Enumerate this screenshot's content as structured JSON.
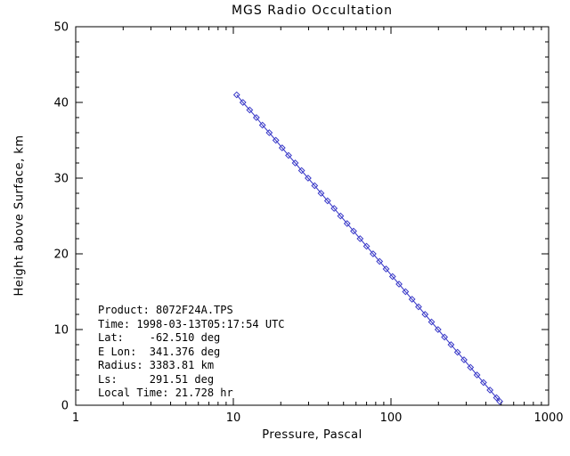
{
  "title": "MGS Radio Occultation",
  "colors": {
    "line": "#3939c8",
    "axis": "#000000",
    "text": "#000000",
    "background": "#ffffff"
  },
  "axes": {
    "x": {
      "label": "Pressure, Pascal",
      "scale": "log",
      "min": 1,
      "max": 1000,
      "major_ticks": [
        1,
        10,
        100,
        1000
      ],
      "tick_labels": [
        "1",
        "10",
        "100",
        "1000"
      ],
      "minor_multiples": [
        2,
        3,
        4,
        5,
        6,
        7,
        8,
        9
      ]
    },
    "y": {
      "label": "Height above Surface, km",
      "scale": "linear",
      "min": 0,
      "max": 50,
      "major_ticks": [
        0,
        10,
        20,
        30,
        40,
        50
      ],
      "tick_labels": [
        "0",
        "10",
        "20",
        "30",
        "40",
        "50"
      ],
      "minor_step": 2
    }
  },
  "annotation": {
    "lines": [
      "Product: 8072F24A.TPS",
      "Time: 1998-03-13T05:17:54 UTC",
      "Lat:    -62.510 deg",
      "E Lon:  341.376 deg",
      "Radius: 3383.81 km",
      "Ls:     291.51 deg",
      "Local Time: 21.728 hr"
    ]
  },
  "chart_data": {
    "type": "line",
    "title": "MGS Radio Occultation",
    "xlabel": "Pressure, Pascal",
    "ylabel": "Height above Surface, km",
    "xscale": "log",
    "xlim": [
      1,
      1000
    ],
    "ylim": [
      0,
      50
    ],
    "grid": false,
    "legend": "none",
    "marker": "open-diamond",
    "series": [
      {
        "name": "radio-occultation-profile",
        "pressure_pa": [
          10.5,
          11.5,
          12.7,
          14.0,
          15.3,
          16.9,
          18.6,
          20.4,
          22.4,
          24.7,
          27.1,
          29.8,
          32.8,
          36.0,
          39.6,
          43.6,
          47.9,
          52.7,
          57.9,
          63.7,
          70.0,
          77.0,
          84.7,
          93.1,
          102.3,
          112.5,
          123.7,
          136.0,
          149.6,
          164.5,
          180.8,
          198.8,
          218.6,
          240.4,
          264.3,
          290.6,
          319.5,
          351.3,
          386.3,
          424.7,
          467.0,
          489.7
        ],
        "height_km": [
          41,
          40,
          39,
          38,
          37,
          36,
          35,
          34,
          33,
          32,
          31,
          30,
          29,
          28,
          27,
          26,
          25,
          24,
          23,
          22,
          21,
          20,
          19,
          18,
          17,
          16,
          15,
          14,
          13,
          12,
          11,
          10,
          9,
          8,
          7,
          6,
          5,
          4,
          3,
          2,
          1,
          0.5
        ]
      }
    ]
  }
}
